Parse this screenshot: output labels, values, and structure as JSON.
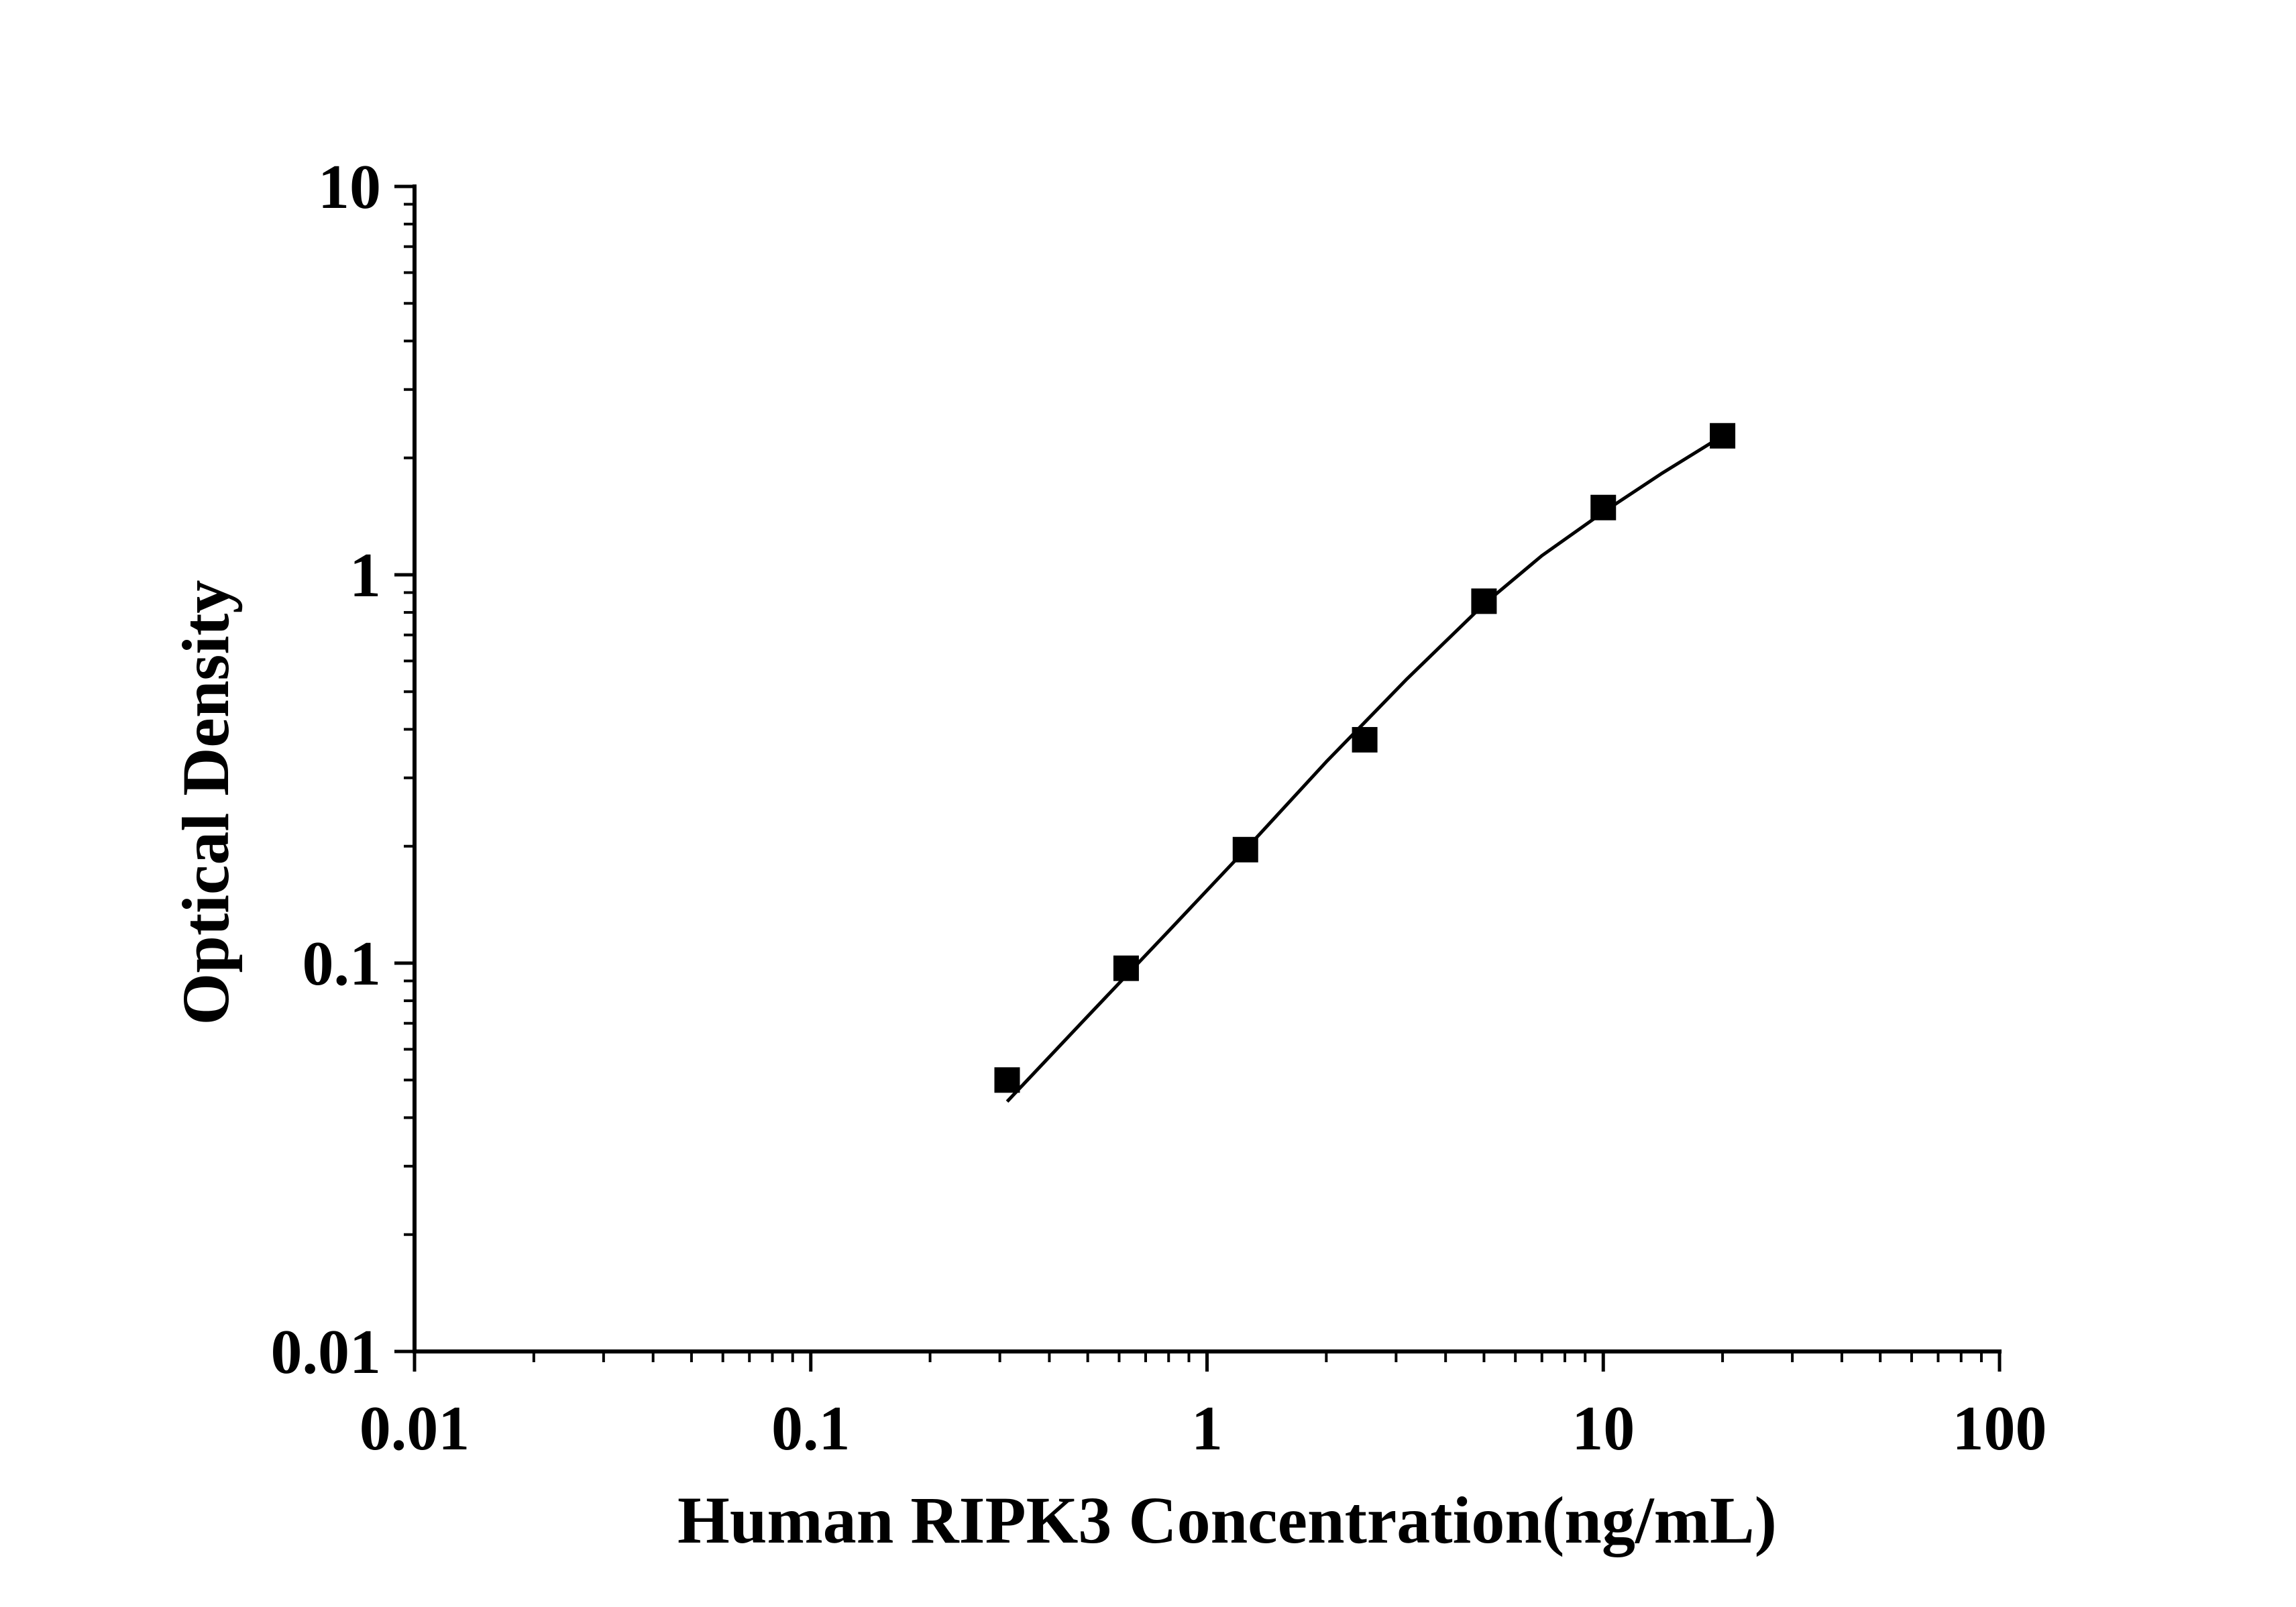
{
  "chart_data": {
    "type": "scatter",
    "title": "",
    "xlabel": "Human RIPK3 Concentration(ng/mL)",
    "ylabel": "Optical Density",
    "x_scale": "log",
    "y_scale": "log",
    "xlim": [
      0.01,
      100
    ],
    "ylim": [
      0.01,
      10
    ],
    "x_ticks": [
      "0.01",
      "0.1",
      "1",
      "10",
      "100"
    ],
    "y_ticks": [
      "0.01",
      "0.1",
      "1",
      "10"
    ],
    "grid": false,
    "legend": "none",
    "series": [
      {
        "marker": "square",
        "color": "#000000",
        "x": [
          0.313,
          0.625,
          1.25,
          2.5,
          5,
          10,
          20
        ],
        "y": [
          0.05,
          0.097,
          0.196,
          0.376,
          0.855,
          1.49,
          2.28
        ]
      }
    ],
    "fit_curve": {
      "color": "#000000",
      "x": [
        0.313,
        0.5,
        0.8,
        1.25,
        2,
        3.2,
        5,
        7,
        10,
        14,
        20
      ],
      "y": [
        0.044,
        0.073,
        0.121,
        0.196,
        0.33,
        0.54,
        0.84,
        1.12,
        1.45,
        1.82,
        2.28
      ]
    }
  }
}
